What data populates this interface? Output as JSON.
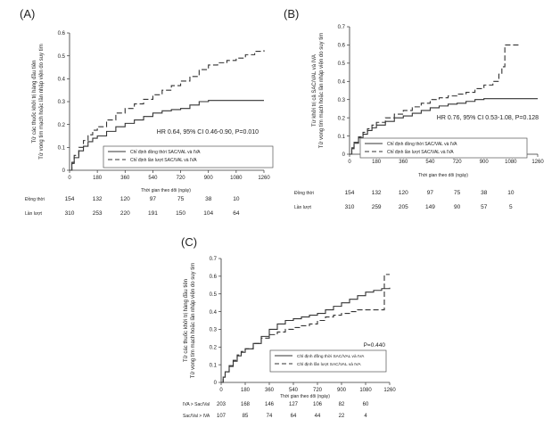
{
  "panels": [
    {
      "id": "A",
      "label": "(A)",
      "ylabel": [
        "Tử vong tim mạch hoặc lần nhập viện do suy tim",
        "Tử các thuốc khởi trị hàng đầu tiên"
      ],
      "xlabel": "Thời gian theo dõi (ngày)",
      "stat": "HR 0.64, 95% CI 0.46-0.90, P=0.010",
      "legend": [
        "Chỉ định đồng thời SAC/VAL và IVA",
        "Chỉ định lần lượt SAC/VAL và IVA"
      ],
      "risk_labels": [
        "Đồng thời",
        "Lần lượt"
      ],
      "risk_rows": [
        [
          "154",
          "132",
          "120",
          "97",
          "75",
          "38",
          "10"
        ],
        [
          "310",
          "253",
          "220",
          "191",
          "150",
          "104",
          "64"
        ]
      ]
    },
    {
      "id": "B",
      "label": "(B)",
      "ylabel": [
        "Tử vong tim mạch hoặc lần nhập viện do suy tim",
        "Từ khởi trị cả SAC/VAL và IVA"
      ],
      "xlabel": "Thời gian theo dõi (ngày)",
      "stat": "HR 0.76, 95% CI 0.53-1.08, P=0.128",
      "legend": [
        "Chỉ định đồng thời SAC/VAL và IVA",
        "Chỉ định lần lượt SAC/VAL và IVA"
      ],
      "risk_labels": [
        "Đồng thời",
        "Lần lượt"
      ],
      "risk_rows": [
        [
          "154",
          "132",
          "120",
          "97",
          "75",
          "38",
          "10"
        ],
        [
          "310",
          "259",
          "205",
          "149",
          "90",
          "57",
          "5"
        ]
      ]
    },
    {
      "id": "C",
      "label": "(C)",
      "ylabel": [
        "Tử vong tim mạch hoặc lần nhập viện do suy tim",
        "Tử các thuốc khởi trị hàng đầu tiên"
      ],
      "xlabel": "Thời gian theo dõi (ngày)",
      "stat": "P=0.440",
      "legend": [
        "Chỉ định đồng thời SAC/VAL và IVA",
        "Chỉ định lần lượt SAC/VAL và IVA"
      ],
      "risk_labels": [
        "IVA > Sac/Val",
        "Sac/Val > IVA"
      ],
      "risk_rows": [
        [
          "203",
          "168",
          "146",
          "127",
          "106",
          "82",
          "60"
        ],
        [
          "107",
          "85",
          "74",
          "64",
          "44",
          "22",
          "4"
        ]
      ]
    }
  ],
  "chart_data": [
    {
      "type": "line",
      "panel": "A",
      "title": "(A)",
      "xlabel": "Thời gian theo dõi (ngày)",
      "ylabel": "Tử các thuốc khởi trị hàng đầu tiên / Tử vong tim mạch hoặc lần nhập viện do suy tim",
      "xlim": [
        0,
        1260
      ],
      "ylim": [
        0,
        0.6
      ],
      "xticks": [
        0,
        180,
        360,
        540,
        720,
        900,
        1080,
        1260
      ],
      "yticks": [
        0,
        0.1,
        0.2,
        0.3,
        0.4,
        0.5,
        0.6
      ],
      "series": [
        {
          "name": "Chỉ định đồng thời SAC/VAL và IVA",
          "style": "solid",
          "x": [
            0,
            15,
            30,
            60,
            90,
            120,
            150,
            180,
            240,
            300,
            360,
            420,
            480,
            540,
            600,
            660,
            720,
            780,
            840,
            900,
            960,
            1020,
            1080,
            1260
          ],
          "y": [
            0,
            0.03,
            0.055,
            0.085,
            0.105,
            0.125,
            0.14,
            0.15,
            0.17,
            0.19,
            0.205,
            0.22,
            0.235,
            0.25,
            0.26,
            0.265,
            0.27,
            0.285,
            0.3,
            0.305,
            0.305,
            0.305,
            0.305,
            0.305
          ]
        },
        {
          "name": "Chỉ định lần lượt SAC/VAL và IVA",
          "style": "dashed",
          "x": [
            0,
            15,
            30,
            60,
            90,
            120,
            150,
            180,
            240,
            300,
            360,
            420,
            480,
            540,
            600,
            660,
            720,
            780,
            840,
            900,
            960,
            1020,
            1080,
            1140,
            1200,
            1260
          ],
          "y": [
            0,
            0.035,
            0.065,
            0.1,
            0.13,
            0.155,
            0.175,
            0.19,
            0.22,
            0.25,
            0.27,
            0.29,
            0.31,
            0.33,
            0.35,
            0.37,
            0.39,
            0.41,
            0.44,
            0.46,
            0.47,
            0.48,
            0.49,
            0.505,
            0.52,
            0.525
          ]
        }
      ]
    },
    {
      "type": "line",
      "panel": "B",
      "title": "(B)",
      "xlabel": "Thời gian theo dõi (ngày)",
      "ylabel": "Từ khởi trị cả SAC/VAL và IVA / Tử vong tim mạch hoặc lần nhập viện do suy tim",
      "xlim": [
        0,
        1260
      ],
      "ylim": [
        0,
        0.7
      ],
      "xticks": [
        0,
        180,
        360,
        540,
        720,
        900,
        1080,
        1260
      ],
      "yticks": [
        0,
        0.1,
        0.2,
        0.3,
        0.4,
        0.5,
        0.6,
        0.7
      ],
      "series": [
        {
          "name": "Chỉ định đồng thời SAC/VAL và IVA",
          "style": "solid",
          "x": [
            0,
            15,
            30,
            60,
            90,
            120,
            150,
            180,
            240,
            300,
            360,
            420,
            480,
            540,
            600,
            660,
            720,
            780,
            840,
            900,
            960,
            1260
          ],
          "y": [
            0,
            0.03,
            0.06,
            0.09,
            0.11,
            0.13,
            0.145,
            0.16,
            0.18,
            0.2,
            0.21,
            0.225,
            0.24,
            0.255,
            0.265,
            0.275,
            0.28,
            0.29,
            0.3,
            0.305,
            0.305,
            0.305
          ]
        },
        {
          "name": "Chỉ định lần lượt SAC/VAL và IVA",
          "style": "dashed",
          "x": [
            0,
            15,
            30,
            60,
            90,
            120,
            150,
            180,
            240,
            300,
            360,
            420,
            480,
            540,
            600,
            660,
            720,
            780,
            840,
            900,
            960,
            1000,
            1020,
            1040,
            1060,
            1080,
            1140
          ],
          "y": [
            0,
            0.035,
            0.065,
            0.095,
            0.12,
            0.14,
            0.16,
            0.175,
            0.2,
            0.22,
            0.24,
            0.26,
            0.28,
            0.3,
            0.31,
            0.32,
            0.33,
            0.34,
            0.36,
            0.38,
            0.4,
            0.44,
            0.48,
            0.6,
            0.6,
            0.6,
            0.6
          ]
        }
      ]
    },
    {
      "type": "line",
      "panel": "C",
      "title": "(C)",
      "xlabel": "Thời gian theo dõi (ngày)",
      "ylabel": "Tử các thuốc khởi trị hàng đầu tiên / Tử vong tim mạch hoặc lần nhập viện do suy tim",
      "xlim": [
        0,
        1260
      ],
      "ylim": [
        0,
        0.7
      ],
      "xticks": [
        0,
        180,
        360,
        540,
        720,
        900,
        1080,
        1260
      ],
      "yticks": [
        0,
        0.1,
        0.2,
        0.3,
        0.4,
        0.5,
        0.6,
        0.7
      ],
      "series": [
        {
          "name": "Chỉ định đồng thời SAC/VAL và IVA",
          "style": "solid",
          "x": [
            0,
            15,
            30,
            60,
            90,
            120,
            150,
            180,
            240,
            300,
            360,
            420,
            480,
            540,
            600,
            660,
            720,
            780,
            840,
            900,
            960,
            1020,
            1080,
            1140,
            1200,
            1260
          ],
          "y": [
            0,
            0.03,
            0.06,
            0.09,
            0.12,
            0.15,
            0.17,
            0.19,
            0.22,
            0.26,
            0.3,
            0.33,
            0.35,
            0.36,
            0.37,
            0.38,
            0.39,
            0.41,
            0.43,
            0.45,
            0.47,
            0.49,
            0.51,
            0.52,
            0.53,
            0.535
          ]
        },
        {
          "name": "Chỉ định lần lượt SAC/VAL và IVA",
          "style": "dashed",
          "x": [
            0,
            15,
            30,
            60,
            90,
            120,
            150,
            180,
            240,
            300,
            360,
            420,
            480,
            540,
            600,
            660,
            720,
            780,
            840,
            900,
            960,
            1020,
            1080,
            1140,
            1200,
            1220,
            1260
          ],
          "y": [
            0,
            0.03,
            0.06,
            0.095,
            0.125,
            0.155,
            0.175,
            0.19,
            0.22,
            0.25,
            0.27,
            0.285,
            0.3,
            0.31,
            0.32,
            0.33,
            0.35,
            0.37,
            0.38,
            0.39,
            0.4,
            0.41,
            0.41,
            0.41,
            0.41,
            0.61,
            0.61
          ]
        }
      ]
    }
  ]
}
